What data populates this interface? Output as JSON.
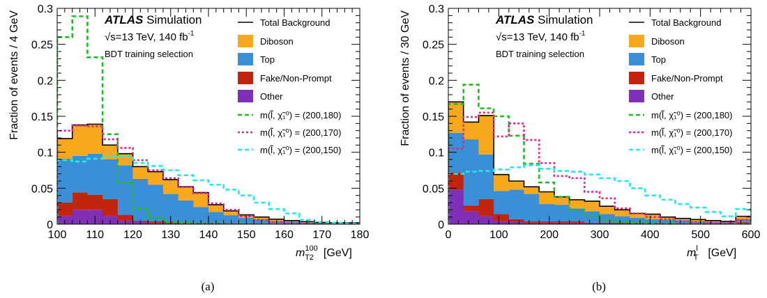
{
  "colors": {
    "Diboson": "#f8a81d",
    "Top": "#3b8fd6",
    "Fake/Non-Prompt": "#c3240e",
    "Other": "#7f2fb8",
    "total": "#000000",
    "sig180": "#22bb22",
    "sig170": "#e8208a",
    "sig150": "#22e8e8"
  },
  "chart_data": [
    {
      "type": "histogram-stacked",
      "panel_label": "(a)",
      "experiment": "ATLAS",
      "experiment_tag": "Simulation",
      "energy_line": "√s=13 TeV, 140 fb",
      "energy_sup": "-1",
      "selection_text": "BDT training selection",
      "ylabel": "Fraction of events / 4 GeV",
      "xlabel_main": "m",
      "xlabel_sub": "T2",
      "xlabel_sup": "100",
      "xlabel_unit": "[GeV]",
      "xlim": [
        100,
        180
      ],
      "ylim": [
        0,
        0.3
      ],
      "x_ticks": [
        100,
        110,
        120,
        130,
        140,
        150,
        160,
        170,
        180
      ],
      "y_ticks": [
        0,
        0.05,
        0.1,
        0.15,
        0.2,
        0.25,
        0.3
      ],
      "x_tick_labels": [
        "100",
        "110",
        "120",
        "130",
        "140",
        "150",
        "160",
        "170",
        "180"
      ],
      "y_tick_labels": [
        "0",
        "0.05",
        "0.1",
        "0.15",
        "0.2",
        "0.25",
        "0.3"
      ],
      "bin_edges": [
        100,
        104,
        108,
        112,
        116,
        120,
        124,
        128,
        132,
        136,
        140,
        144,
        148,
        152,
        156,
        160,
        164,
        168,
        172,
        176,
        180
      ],
      "stack": [
        {
          "name": "Other",
          "values": [
            0.011,
            0.02,
            0.02,
            0.011,
            0.005,
            0.003,
            0.002,
            0.002,
            0.001,
            0.001,
            0.001,
            0.001,
            0.0005,
            0.0005,
            0.0003,
            0.0003,
            0.0002,
            0.0002,
            0.0001,
            0.0001
          ]
        },
        {
          "name": "Fake/Non-Prompt",
          "values": [
            0.019,
            0.024,
            0.021,
            0.024,
            0.008,
            0.002,
            0.002,
            0.002,
            0.001,
            0.001,
            0.001,
            0.0005,
            0.0005,
            0.0003,
            0.0003,
            0.0002,
            0.0001,
            0.0001,
            0.0001,
            0.0001
          ]
        },
        {
          "name": "Top",
          "values": [
            0.061,
            0.051,
            0.057,
            0.055,
            0.069,
            0.058,
            0.051,
            0.038,
            0.031,
            0.022,
            0.015,
            0.011,
            0.008,
            0.006,
            0.004,
            0.003,
            0.002,
            0.0015,
            0.001,
            0.001
          ]
        },
        {
          "name": "Diboson",
          "values": [
            0.028,
            0.043,
            0.041,
            0.02,
            0.016,
            0.017,
            0.018,
            0.02,
            0.019,
            0.02,
            0.01,
            0.006,
            0.004,
            0.0032,
            0.0024,
            0.0015,
            0.0012,
            0.0007,
            0.0008,
            0.0008
          ]
        }
      ],
      "total_label": "Total Background",
      "total": [
        0.119,
        0.138,
        0.139,
        0.11,
        0.098,
        0.08,
        0.073,
        0.062,
        0.052,
        0.044,
        0.027,
        0.0185,
        0.013,
        0.01,
        0.007,
        0.005,
        0.0035,
        0.0025,
        0.002,
        0.002
      ],
      "signals": [
        {
          "name": "m(l̃, χ̃₁⁰) = (200,180)",
          "color_key": "sig180",
          "values": [
            0.26,
            0.289,
            0.232,
            0.125,
            0.058,
            0.021,
            0.009,
            0.003,
            0.002,
            0.001,
            0.0008,
            0.0005,
            0.0004,
            0.0003,
            0.0002,
            0.0002,
            0.0001,
            0.0001,
            0.0001,
            0.0001
          ]
        },
        {
          "name": "m(l̃, χ̃₁⁰) = (200,170)",
          "color_key": "sig170",
          "values": [
            0.13,
            0.137,
            0.136,
            0.118,
            0.106,
            0.089,
            0.075,
            0.064,
            0.052,
            0.043,
            0.029,
            0.02,
            0.011,
            0.006,
            0.003,
            0.001,
            0.0008,
            0.0005,
            0.0004,
            0.0003
          ]
        },
        {
          "name": "m(l̃, χ̃₁⁰) = (200,150)",
          "color_key": "sig150",
          "values": [
            0.089,
            0.087,
            0.091,
            0.094,
            0.094,
            0.085,
            0.081,
            0.075,
            0.068,
            0.061,
            0.055,
            0.048,
            0.04,
            0.03,
            0.021,
            0.015,
            0.006,
            0.003,
            0.002,
            0.001
          ]
        }
      ],
      "legend_placement": "top-right"
    },
    {
      "type": "histogram-stacked",
      "panel_label": "(b)",
      "experiment": "ATLAS",
      "experiment_tag": "Simulation",
      "energy_line": "√s=13 TeV, 140 fb",
      "energy_sup": "-1",
      "selection_text": "BDT training selection",
      "ylabel": "Fraction of events / 30 GeV",
      "xlabel_main": "m",
      "xlabel_sub": "T",
      "xlabel_sup": "l",
      "xlabel_unit": "[GeV]",
      "xlim": [
        0,
        600
      ],
      "ylim": [
        0,
        0.3
      ],
      "x_ticks": [
        0,
        100,
        200,
        300,
        400,
        500,
        600
      ],
      "y_ticks": [
        0,
        0.05,
        0.1,
        0.15,
        0.2,
        0.25,
        0.3
      ],
      "x_tick_labels": [
        "0",
        "100",
        "200",
        "300",
        "400",
        "500",
        "600"
      ],
      "y_tick_labels": [
        "0",
        "0.05",
        "0.1",
        "0.15",
        "0.2",
        "0.25",
        "0.3"
      ],
      "bin_edges": [
        0,
        30,
        60,
        90,
        120,
        150,
        180,
        210,
        240,
        270,
        300,
        330,
        360,
        390,
        420,
        450,
        480,
        510,
        540,
        570,
        600
      ],
      "stack": [
        {
          "name": "Other",
          "values": [
            0.048,
            0.018,
            0.011,
            0.004,
            0.003,
            0.002,
            0.002,
            0.002,
            0.002,
            0.001,
            0.001,
            0.001,
            0.001,
            0.001,
            0.001,
            0.001,
            0.0005,
            0.0005,
            0.0005,
            0.002
          ]
        },
        {
          "name": "Fake/Non-Prompt",
          "values": [
            0.024,
            0.008,
            0.024,
            0.01,
            0.004,
            0.002,
            0.002,
            0.002,
            0.002,
            0.001,
            0.001,
            0.001,
            0.001,
            0.001,
            0.0005,
            0.0005,
            0.0005,
            0.0005,
            0.0005,
            0.001
          ]
        },
        {
          "name": "Top",
          "values": [
            0.055,
            0.092,
            0.062,
            0.032,
            0.041,
            0.038,
            0.024,
            0.023,
            0.018,
            0.016,
            0.012,
            0.009,
            0.007,
            0.005,
            0.005,
            0.004,
            0.003,
            0.002,
            0.002,
            0.004
          ]
        },
        {
          "name": "Diboson",
          "values": [
            0.043,
            0.024,
            0.054,
            0.023,
            0.012,
            0.01,
            0.017,
            0.011,
            0.012,
            0.014,
            0.011,
            0.009,
            0.006,
            0.007,
            0.0035,
            0.0025,
            0.0025,
            0.002,
            0.001,
            0.004
          ]
        }
      ],
      "total_label": "Total Background",
      "total": [
        0.17,
        0.142,
        0.151,
        0.069,
        0.06,
        0.052,
        0.045,
        0.038,
        0.034,
        0.032,
        0.025,
        0.02,
        0.015,
        0.014,
        0.01,
        0.008,
        0.0065,
        0.005,
        0.004,
        0.011
      ],
      "signals": [
        {
          "name": "m(l̃, χ̃₁⁰) = (200,180)",
          "color_key": "sig180",
          "values": [
            0.167,
            0.194,
            0.161,
            0.15,
            0.123,
            0.084,
            0.058,
            0.038,
            0.02,
            0.012,
            0.006,
            0.003,
            0.002,
            0.001,
            0.001,
            0.0005,
            0.0005,
            0.0003,
            0.0003,
            0.0002
          ]
        },
        {
          "name": "m(l̃, χ̃₁⁰) = (200,170)",
          "color_key": "sig170",
          "values": [
            0.105,
            0.149,
            0.155,
            0.122,
            0.14,
            0.117,
            0.085,
            0.067,
            0.064,
            0.045,
            0.036,
            0.022,
            0.015,
            0.01,
            0.007,
            0.004,
            0.003,
            0.002,
            0.002,
            0.006
          ]
        },
        {
          "name": "m(l̃, χ̃₁⁰) = (200,150)",
          "color_key": "sig150",
          "values": [
            0.07,
            0.073,
            0.074,
            0.076,
            0.079,
            0.082,
            0.077,
            0.074,
            0.073,
            0.069,
            0.064,
            0.06,
            0.05,
            0.04,
            0.034,
            0.028,
            0.023,
            0.017,
            0.011,
            0.021
          ]
        }
      ],
      "legend_placement": "top-right"
    }
  ]
}
